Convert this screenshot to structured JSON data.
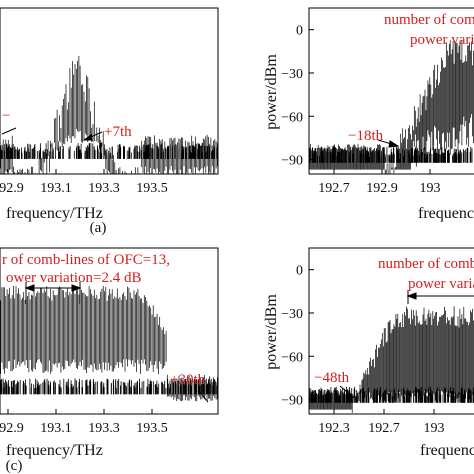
{
  "chart_data": [
    {
      "type": "line",
      "panel_label": "(a)",
      "xlabel": "frequency/THz",
      "ylabel": "",
      "x_ticks": [
        "192.9",
        "193.1",
        "193.3",
        "193.5"
      ],
      "xlim": [
        192.8,
        193.65
      ],
      "ylim": [
        -100,
        10
      ],
      "center": 193.1,
      "envelope_half_width": 0.03,
      "envelope_peak_dbm": -10,
      "floor_dbm": -88,
      "side_floor_dbm": -92,
      "annotations": [
        {
          "text": "−",
          "x": 192.8,
          "y": -55
        },
        {
          "text": "+7th",
          "x": 193.24,
          "y": -62
        }
      ]
    },
    {
      "type": "line",
      "panel_label": "(b)",
      "xlabel": "frequency/",
      "ylabel": "power/dBm",
      "y_ticks": [
        "0",
        "−30",
        "−60",
        "−90"
      ],
      "y_tick_values": [
        0,
        -30,
        -60,
        -90
      ],
      "x_ticks": [
        "192.7",
        "192.9",
        "193"
      ],
      "xlim": [
        192.55,
        193.2
      ],
      "ylim": [
        -100,
        15
      ],
      "comb_start": 192.95,
      "envelope_peak_dbm": -5,
      "floor_dbm": -90,
      "annotations": [
        {
          "text": "number of comb",
          "x": 192.99,
          "y": 12
        },
        {
          "text": "power varia",
          "x": 193.08,
          "y": 2
        },
        {
          "text": "−18th",
          "x": 192.81,
          "y": -78
        }
      ]
    },
    {
      "type": "line",
      "panel_label": "(c)",
      "xlabel": "frequency/THz",
      "ylabel": "",
      "x_ticks": [
        "192.9",
        "193.1",
        "193.3",
        "193.5"
      ],
      "xlim": [
        192.8,
        193.65
      ],
      "ylim": [
        -100,
        10
      ],
      "comb_range": [
        192.8,
        193.45
      ],
      "flat_top_dbm": -15,
      "floor_dbm": -85,
      "annotations": [
        {
          "text": "r of comb-lines of OFC=13,",
          "x": 192.8,
          "y": 8
        },
        {
          "text": "ower variation=2.4 dB",
          "x": 192.8,
          "y": -2
        },
        {
          "text": "+30th",
          "x": 193.52,
          "y": -80
        }
      ]
    },
    {
      "type": "line",
      "panel_label": "(d)",
      "xlabel": "frequenc",
      "ylabel": "power/dBm",
      "y_ticks": [
        "0",
        "−30",
        "−60",
        "−90"
      ],
      "y_tick_values": [
        0,
        -30,
        -60,
        -90
      ],
      "x_ticks": [
        "192.3",
        "192.7",
        "193"
      ],
      "xlim": [
        192.0,
        193.15
      ],
      "ylim": [
        -100,
        15
      ],
      "comb_start": 192.3,
      "envelope_peak_dbm": -25,
      "floor_dbm": -90,
      "annotations": [
        {
          "text": "number of comb",
          "x": 192.7,
          "y": 8
        },
        {
          "text": "power varia",
          "x": 192.85,
          "y": -4
        },
        {
          "text": "−48th",
          "x": 192.1,
          "y": -80
        }
      ]
    }
  ]
}
